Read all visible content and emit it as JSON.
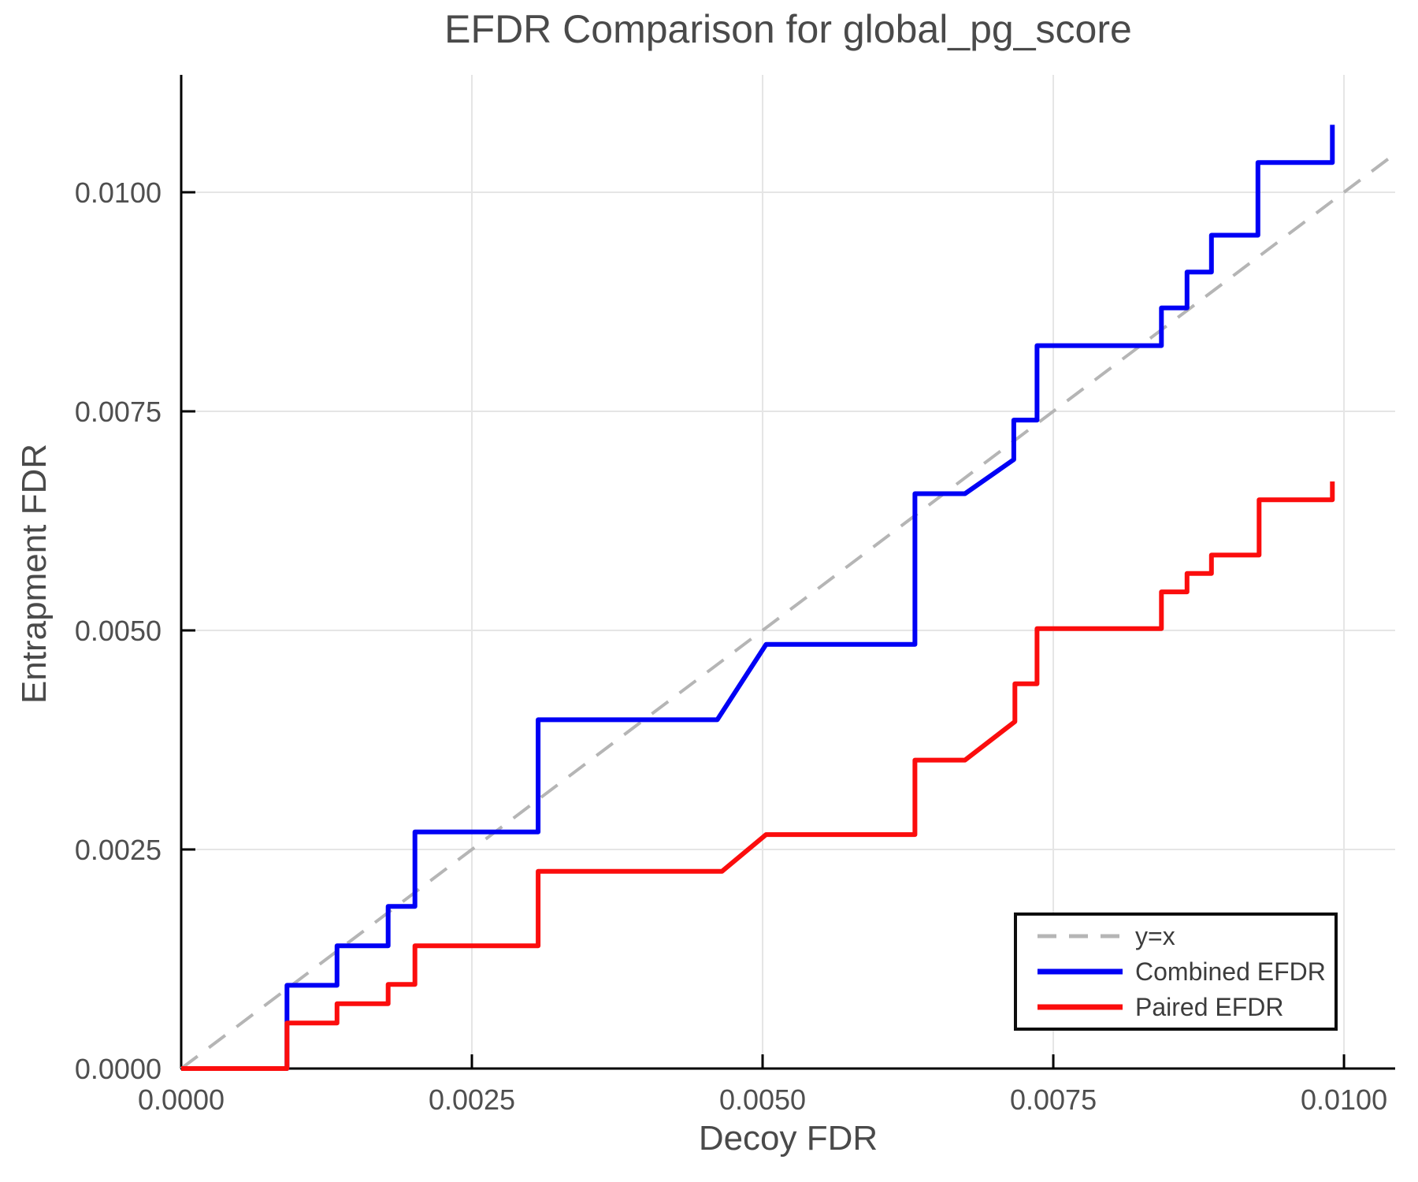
{
  "title": "EFDR Comparison for global_pg_score",
  "chart_data": {
    "type": "line",
    "title": "EFDR Comparison for global_pg_score",
    "xlabel": "Decoy FDR",
    "ylabel": "Entrapment FDR",
    "xlim": [
      0,
      0.01044
    ],
    "ylim": [
      0,
      0.01134
    ],
    "grid": true,
    "legend_position": "lower right",
    "xticks": {
      "values": [
        0,
        0.0025,
        0.005,
        0.0075,
        0.01
      ],
      "labels": [
        "0.0000",
        "0.0025",
        "0.0050",
        "0.0075",
        "0.0100"
      ]
    },
    "yticks": {
      "values": [
        0,
        0.0025,
        0.005,
        0.0075,
        0.01
      ],
      "labels": [
        "0.0000",
        "0.0025",
        "0.0050",
        "0.0075",
        "0.0100"
      ]
    },
    "colors": {
      "identity": "#b5b5b5",
      "combined": "#0000f5",
      "paired": "#fb0d0d",
      "grid": "#e5e5e5",
      "axis": "#000000",
      "tick_label": "#4f4f4f"
    },
    "series": [
      {
        "name": "y=x",
        "style": "dashed",
        "color": "#b5b5b5",
        "points": [
          [
            0,
            0
          ],
          [
            0.01042,
            0.01042
          ]
        ]
      },
      {
        "name": "Combined EFDR",
        "style": "solid",
        "color": "#0000f5",
        "points": [
          [
            0,
            0
          ],
          [
            0.00091,
            0
          ],
          [
            0.00091,
            0.00095
          ],
          [
            0.00134,
            0.00095
          ],
          [
            0.00134,
            0.0014
          ],
          [
            0.00178,
            0.0014
          ],
          [
            0.00178,
            0.00185
          ],
          [
            0.00201,
            0.00185
          ],
          [
            0.00201,
            0.0027
          ],
          [
            0.00307,
            0.0027
          ],
          [
            0.00307,
            0.00398
          ],
          [
            0.00461,
            0.00398
          ],
          [
            0.00503,
            0.00484
          ],
          [
            0.00631,
            0.00484
          ],
          [
            0.00631,
            0.00656
          ],
          [
            0.00674,
            0.00656
          ],
          [
            0.00716,
            0.00695
          ],
          [
            0.00716,
            0.0074
          ],
          [
            0.00736,
            0.0074
          ],
          [
            0.00736,
            0.00825
          ],
          [
            0.00843,
            0.00825
          ],
          [
            0.00843,
            0.00868
          ],
          [
            0.00865,
            0.00868
          ],
          [
            0.00865,
            0.00909
          ],
          [
            0.00886,
            0.00909
          ],
          [
            0.00886,
            0.00951
          ],
          [
            0.00926,
            0.00951
          ],
          [
            0.00926,
            0.01034
          ],
          [
            0.0099,
            0.01034
          ],
          [
            0.0099,
            0.01077
          ]
        ]
      },
      {
        "name": "Paired EFDR",
        "style": "solid",
        "color": "#fb0d0d",
        "points": [
          [
            0,
            0
          ],
          [
            0.00091,
            0
          ],
          [
            0.00091,
            0.00052
          ],
          [
            0.00134,
            0.00052
          ],
          [
            0.00134,
            0.00074
          ],
          [
            0.00178,
            0.00074
          ],
          [
            0.00178,
            0.00096
          ],
          [
            0.00201,
            0.00096
          ],
          [
            0.00201,
            0.0014
          ],
          [
            0.00307,
            0.0014
          ],
          [
            0.00307,
            0.00225
          ],
          [
            0.00465,
            0.00225
          ],
          [
            0.00503,
            0.00267
          ],
          [
            0.00631,
            0.00267
          ],
          [
            0.00631,
            0.00352
          ],
          [
            0.00674,
            0.00352
          ],
          [
            0.00717,
            0.00396
          ],
          [
            0.00717,
            0.00439
          ],
          [
            0.00736,
            0.00439
          ],
          [
            0.00736,
            0.00502
          ],
          [
            0.00843,
            0.00502
          ],
          [
            0.00843,
            0.00544
          ],
          [
            0.00865,
            0.00544
          ],
          [
            0.00865,
            0.00565
          ],
          [
            0.00886,
            0.00565
          ],
          [
            0.00886,
            0.00586
          ],
          [
            0.00927,
            0.00586
          ],
          [
            0.00927,
            0.00649
          ],
          [
            0.0099,
            0.00649
          ],
          [
            0.0099,
            0.0067
          ]
        ]
      }
    ]
  }
}
